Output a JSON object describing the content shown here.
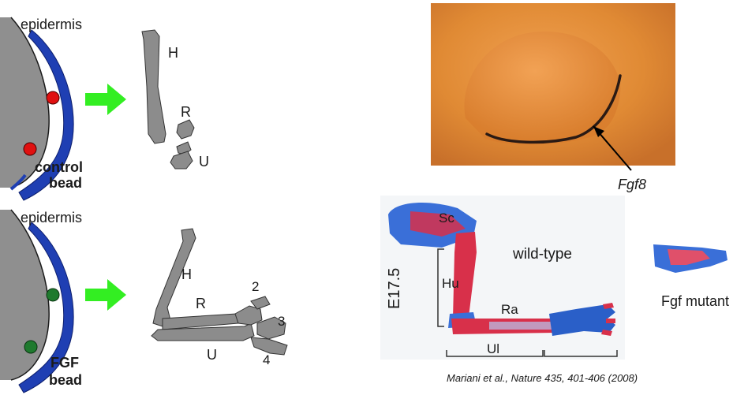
{
  "control_panel": {
    "epidermis_label": "epidermis",
    "bead_label_line1": "control",
    "bead_label_line2": "bead",
    "bead_color": "#e01010",
    "bone_labels": {
      "humerus": "H",
      "radius": "R",
      "ulna": "U"
    }
  },
  "fgf_panel": {
    "epidermis_label": "epidermis",
    "bead_label_line1": "FGF",
    "bead_label_line2": "bead",
    "bead_color": "#1f7a2e",
    "bone_labels": {
      "humerus": "H",
      "radius": "R",
      "ulna": "U",
      "digit2": "2",
      "digit3": "3",
      "digit4": "4"
    }
  },
  "colors": {
    "ectoderm_blue": "#1f3fb3",
    "mesoderm_gray": "#8f8f8f",
    "arrow_green": "#33ee22",
    "bone_gray": "#8c8c8c",
    "photo_orange": "#e08a34"
  },
  "fgf8_photo": {
    "label": "Fgf8"
  },
  "skeleton_photo": {
    "stage_label": "E17.5",
    "wildtype_label": "wild-type",
    "labels": {
      "scapula": "Sc",
      "humerus": "Hu",
      "radius": "Ra",
      "ulna": "Ul"
    },
    "mutant_label": "Fgf mutant"
  },
  "citation": "Mariani et al., Nature 435, 401-406 (2008)"
}
